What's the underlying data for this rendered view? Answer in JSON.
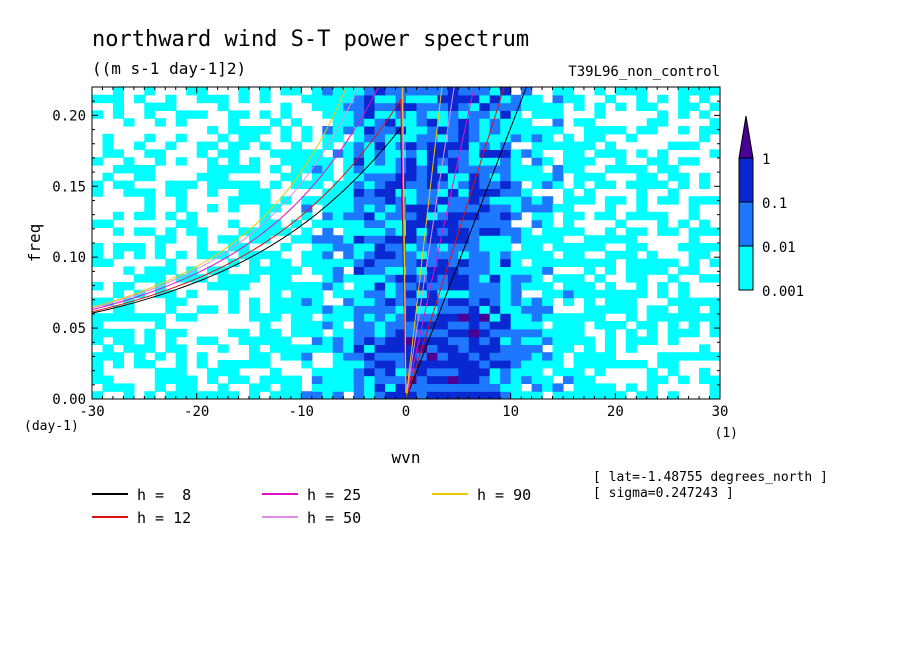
{
  "chart_data": {
    "type": "heatmap",
    "title": "northward wind S-T power spectrum",
    "units": "((m s-1 day-1]2)",
    "run_label": "T39L96_non_control",
    "xlabel": "wvn",
    "x_units": "(1)",
    "ylabel": "freq",
    "y_units": "(day-1)",
    "xlim": [
      -30,
      30
    ],
    "ylim": [
      0.0,
      0.22
    ],
    "x_ticks": [
      -30,
      -20,
      -10,
      0,
      10,
      20,
      30
    ],
    "x_tick_labels": [
      "-30",
      "-20",
      "-10",
      "0",
      "10",
      "20",
      "30"
    ],
    "y_ticks": [
      0.0,
      0.05,
      0.1,
      0.15,
      0.2
    ],
    "y_tick_labels": [
      "0.00",
      "0.05",
      "0.10",
      "0.15",
      "0.20"
    ],
    "colorbar": {
      "levels": [
        "0.001",
        "0.01",
        "0.1",
        "1"
      ],
      "colors": [
        "#00ffff",
        "#1e78ff",
        "#0a28d2",
        "#4b0096"
      ],
      "extend": "max"
    },
    "series": [
      {
        "name": "h =  8",
        "h": 8,
        "color": "#000000"
      },
      {
        "name": "h = 12",
        "h": 12,
        "color": "#e01010"
      },
      {
        "name": "h = 25",
        "h": 25,
        "color": "#e010c8"
      },
      {
        "name": "h = 50",
        "h": 50,
        "color": "#e08ce8"
      },
      {
        "name": "h = 90",
        "h": 90,
        "color": "#f0c800"
      }
    ],
    "annotations": [
      "[ lat=-1.48755 degrees_north ]",
      "[ sigma=0.247243 ]"
    ]
  }
}
